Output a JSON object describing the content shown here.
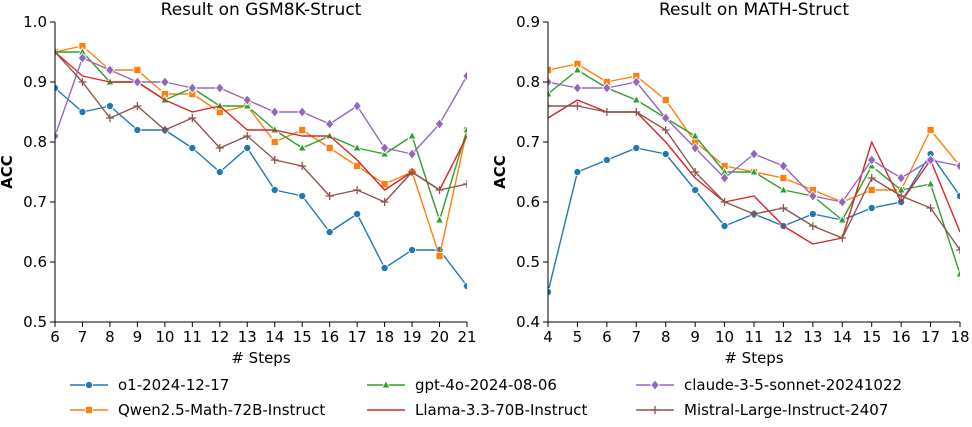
{
  "chart_data": [
    {
      "type": "line",
      "title": "Result on GSM8K-Struct",
      "xlabel": "# Steps",
      "ylabel": "ACC",
      "x": [
        6,
        7,
        8,
        9,
        10,
        11,
        12,
        13,
        14,
        15,
        16,
        17,
        18,
        19,
        20,
        21
      ],
      "xlim": [
        6,
        21
      ],
      "ylim": [
        0.5,
        1.0
      ],
      "yticks": [
        "0.5",
        "0.6",
        "0.7",
        "0.8",
        "0.9",
        "1.0"
      ],
      "grid": false,
      "series": [
        {
          "name": "o1-2024-12-17",
          "color": "#1f77b4",
          "marker": "circle",
          "values": [
            0.89,
            0.85,
            0.86,
            0.82,
            0.82,
            0.79,
            0.75,
            0.79,
            0.72,
            0.71,
            0.65,
            0.68,
            0.59,
            0.62,
            0.62,
            0.56
          ]
        },
        {
          "name": "Qwen2.5-Math-72B-Instruct",
          "color": "#ff7f0e",
          "marker": "square",
          "values": [
            0.95,
            0.96,
            0.92,
            0.92,
            0.88,
            0.88,
            0.85,
            0.86,
            0.8,
            0.82,
            0.79,
            0.76,
            0.73,
            0.75,
            0.61,
            0.82
          ]
        },
        {
          "name": "gpt-4o-2024-08-06",
          "color": "#2ca02c",
          "marker": "triangle",
          "values": [
            0.95,
            0.95,
            0.9,
            0.9,
            0.87,
            0.89,
            0.86,
            0.86,
            0.82,
            0.79,
            0.81,
            0.79,
            0.78,
            0.81,
            0.67,
            0.82
          ]
        },
        {
          "name": "Llama-3.3-70B-Instruct",
          "color": "#d62728",
          "marker": "none",
          "values": [
            0.95,
            0.91,
            0.9,
            0.9,
            0.87,
            0.85,
            0.86,
            0.82,
            0.82,
            0.81,
            0.81,
            0.77,
            0.72,
            0.75,
            0.72,
            0.81
          ]
        },
        {
          "name": "claude-3-5-sonnet-20241022",
          "color": "#9467bd",
          "marker": "diamond",
          "values": [
            0.81,
            0.94,
            0.92,
            0.9,
            0.9,
            0.89,
            0.89,
            0.87,
            0.85,
            0.85,
            0.83,
            0.86,
            0.79,
            0.78,
            0.83,
            0.91
          ]
        },
        {
          "name": "Mistral-Large-Instruct-2407",
          "color": "#8c564b",
          "marker": "plus",
          "values": [
            0.95,
            0.9,
            0.84,
            0.86,
            0.82,
            0.84,
            0.79,
            0.81,
            0.77,
            0.76,
            0.71,
            0.72,
            0.7,
            0.75,
            0.72,
            0.73
          ]
        }
      ]
    },
    {
      "type": "line",
      "title": "Result on MATH-Struct",
      "xlabel": "# Steps",
      "ylabel": "ACC",
      "x": [
        4,
        5,
        6,
        7,
        8,
        9,
        10,
        11,
        12,
        13,
        14,
        15,
        16,
        17,
        18
      ],
      "xlim": [
        4,
        18
      ],
      "ylim": [
        0.4,
        0.9
      ],
      "yticks": [
        "0.4",
        "0.5",
        "0.6",
        "0.7",
        "0.8",
        "0.9"
      ],
      "grid": false,
      "series": [
        {
          "name": "o1-2024-12-17",
          "color": "#1f77b4",
          "marker": "circle",
          "values": [
            0.45,
            0.65,
            0.67,
            0.69,
            0.68,
            0.62,
            0.56,
            0.58,
            0.56,
            0.58,
            0.57,
            0.59,
            0.6,
            0.68,
            0.61
          ]
        },
        {
          "name": "Qwen2.5-Math-72B-Instruct",
          "color": "#ff7f0e",
          "marker": "square",
          "values": [
            0.82,
            0.83,
            0.8,
            0.81,
            0.77,
            0.7,
            0.66,
            0.65,
            0.64,
            0.62,
            0.6,
            0.62,
            0.62,
            0.72,
            0.66
          ]
        },
        {
          "name": "gpt-4o-2024-08-06",
          "color": "#2ca02c",
          "marker": "triangle",
          "values": [
            0.78,
            0.82,
            0.79,
            0.77,
            0.74,
            0.71,
            0.65,
            0.65,
            0.62,
            0.61,
            0.57,
            0.66,
            0.62,
            0.63,
            0.48
          ]
        },
        {
          "name": "Llama-3.3-70B-Instruct",
          "color": "#d62728",
          "marker": "none",
          "values": [
            0.74,
            0.77,
            0.75,
            0.75,
            0.7,
            0.64,
            0.6,
            0.61,
            0.56,
            0.53,
            0.54,
            0.7,
            0.6,
            0.67,
            0.55
          ]
        },
        {
          "name": "claude-3-5-sonnet-20241022",
          "color": "#9467bd",
          "marker": "diamond",
          "values": [
            0.8,
            0.79,
            0.79,
            0.8,
            0.74,
            0.69,
            0.64,
            0.68,
            0.66,
            0.61,
            0.6,
            0.67,
            0.64,
            0.67,
            0.66
          ]
        },
        {
          "name": "Mistral-Large-Instruct-2407",
          "color": "#8c564b",
          "marker": "plus",
          "values": [
            0.76,
            0.76,
            0.75,
            0.75,
            0.72,
            0.65,
            0.6,
            0.58,
            0.59,
            0.56,
            0.54,
            0.64,
            0.61,
            0.59,
            0.52
          ]
        }
      ]
    }
  ],
  "legend": {
    "placement": "bottom-center",
    "entries": [
      {
        "label": "o1-2024-12-17",
        "color": "#1f77b4",
        "marker": "circle"
      },
      {
        "label": "gpt-4o-2024-08-06",
        "color": "#2ca02c",
        "marker": "triangle"
      },
      {
        "label": "claude-3-5-sonnet-20241022",
        "color": "#9467bd",
        "marker": "diamond"
      },
      {
        "label": "Qwen2.5-Math-72B-Instruct",
        "color": "#ff7f0e",
        "marker": "square"
      },
      {
        "label": "Llama-3.3-70B-Instruct",
        "color": "#d62728",
        "marker": "none"
      },
      {
        "label": "Mistral-Large-Instruct-2407",
        "color": "#8c564b",
        "marker": "plus"
      }
    ]
  }
}
